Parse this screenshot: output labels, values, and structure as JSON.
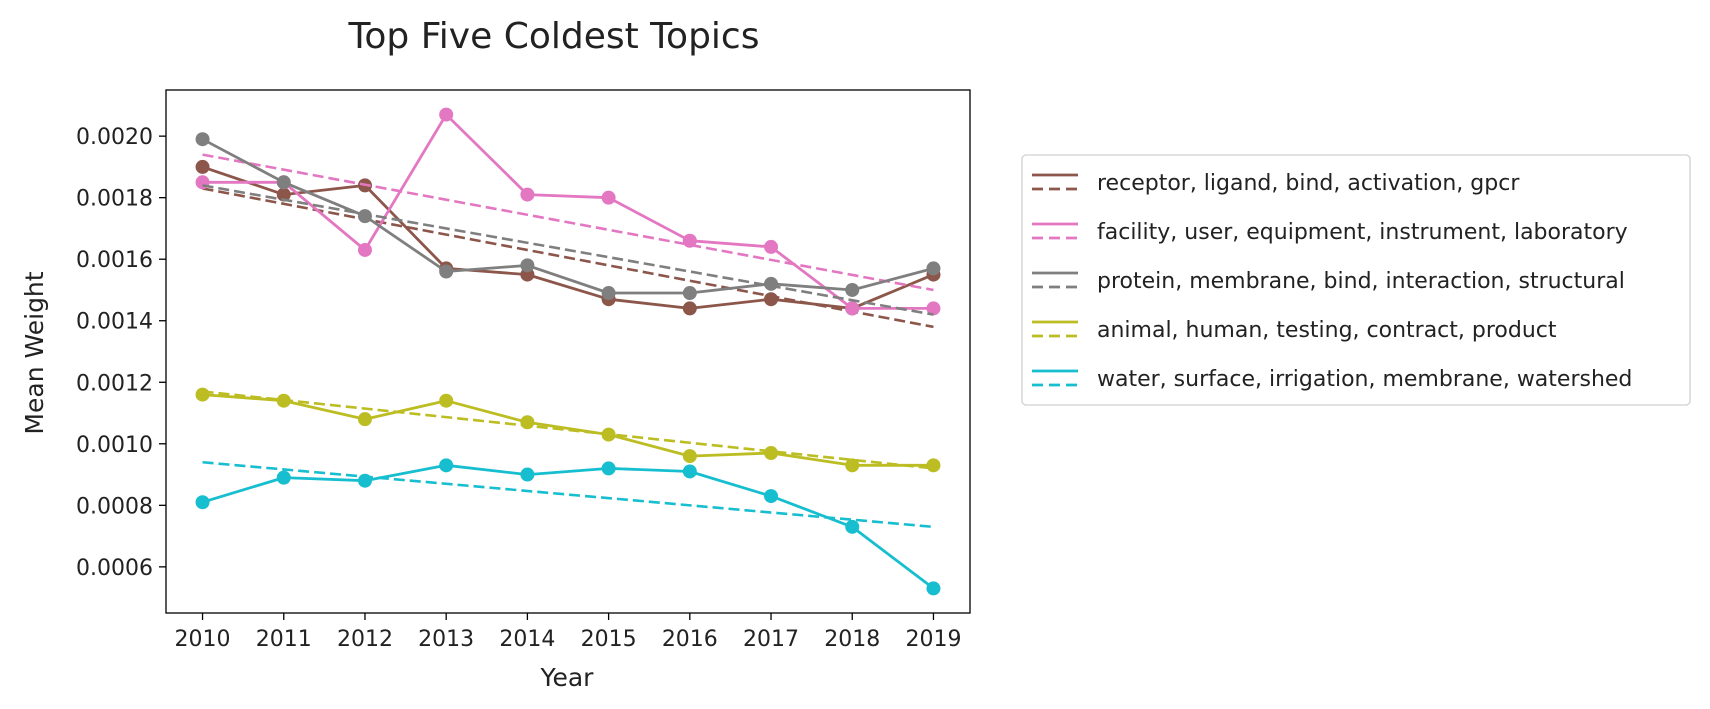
{
  "chart_data": {
    "type": "line",
    "title": "Top Five Coldest Topics",
    "xlabel": "Year",
    "ylabel": "Mean Weight",
    "x": [
      2010,
      2011,
      2012,
      2013,
      2014,
      2015,
      2016,
      2017,
      2018,
      2019
    ],
    "xlim": [
      2009.55,
      2019.45
    ],
    "ylim": [
      0.00045,
      0.00215
    ],
    "yticks": [
      0.0006,
      0.0008,
      0.001,
      0.0012,
      0.0014,
      0.0016,
      0.0018,
      0.002
    ],
    "ytick_labels": [
      "0.0006",
      "0.0008",
      "0.0010",
      "0.0012",
      "0.0014",
      "0.0016",
      "0.0018",
      "0.0020"
    ],
    "grid": false,
    "legend_position": "right, outside plot",
    "series": [
      {
        "name": "receptor, ligand, bind, activation, gpcr",
        "color": "#8c564b",
        "values": [
          0.0019,
          0.00181,
          0.00184,
          0.00157,
          0.00155,
          0.00147,
          0.00144,
          0.00147,
          0.00144,
          0.00155
        ],
        "trend": [
          0.00183,
          0.00138
        ]
      },
      {
        "name": "facility, user, equipment, instrument, laboratory",
        "color": "#e377c2",
        "values": [
          0.00185,
          0.00185,
          0.00163,
          0.00207,
          0.00181,
          0.0018,
          0.00166,
          0.00164,
          0.00144,
          0.00144
        ],
        "trend": [
          0.00194,
          0.0015
        ]
      },
      {
        "name": "protein, membrane, bind, interaction, structural",
        "color": "#7f7f7f",
        "values": [
          0.00199,
          0.00185,
          0.00174,
          0.00156,
          0.00158,
          0.00149,
          0.00149,
          0.00152,
          0.0015,
          0.00157
        ],
        "trend": [
          0.00184,
          0.00142
        ]
      },
      {
        "name": "animal, human, testing, contract, product",
        "color": "#bcbd22",
        "values": [
          0.00116,
          0.00114,
          0.00108,
          0.00114,
          0.00107,
          0.00103,
          0.00096,
          0.00097,
          0.00093,
          0.00093
        ],
        "trend": [
          0.00117,
          0.00092
        ]
      },
      {
        "name": "water, surface, irrigation, membrane, watershed",
        "color": "#17becf",
        "values": [
          0.00081,
          0.00089,
          0.00088,
          0.00093,
          0.0009,
          0.00092,
          0.00091,
          0.00083,
          0.00073,
          0.00053
        ],
        "trend": [
          0.00094,
          0.00073
        ]
      }
    ]
  }
}
